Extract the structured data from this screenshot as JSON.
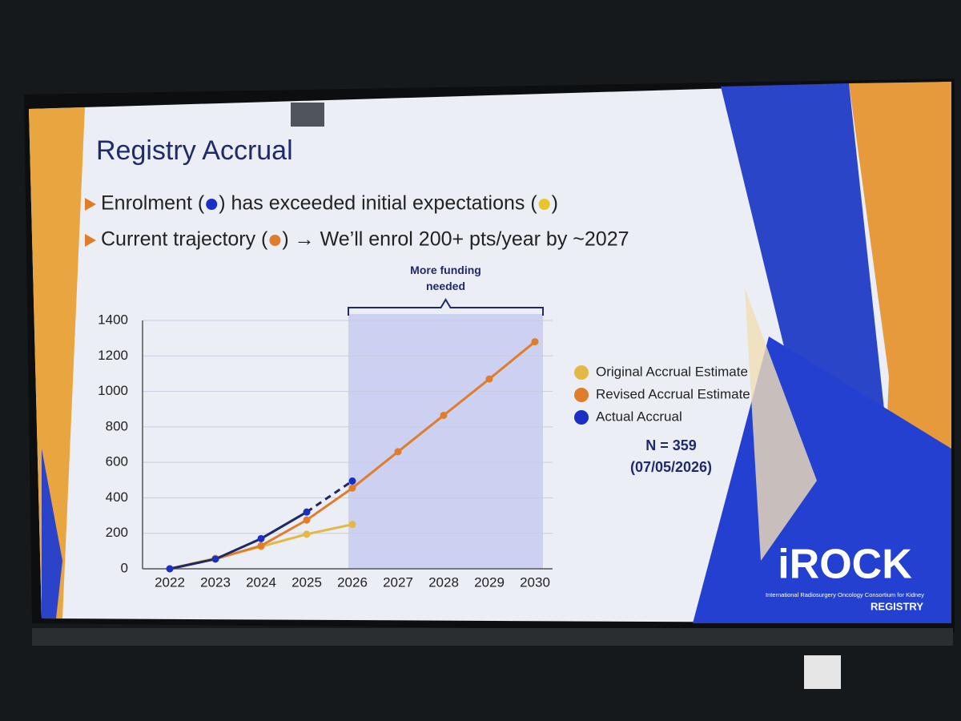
{
  "slide": {
    "title": "Registry Accrual",
    "bullets": [
      [
        "Enrolment (",
        ") has exceeded initial expectations (",
        ")"
      ],
      [
        "Current trajectory (",
        ") → We’ll enrol 200+ pts/year by ~2027"
      ]
    ],
    "bullet_dot_colors": [
      [
        "#1a2fc4",
        "#e8c62a"
      ],
      [
        "#e07d2a"
      ]
    ],
    "logo": {
      "name": "iROCK",
      "subtitle": "International Radiosurgery Oncology Consortium for Kidney",
      "tag": "REGISTRY"
    }
  },
  "chart_data": {
    "type": "line",
    "categories": [
      "2022",
      "2023",
      "2024",
      "2025",
      "2026",
      "2027",
      "2028",
      "2029",
      "2030"
    ],
    "series": [
      {
        "name": "Original Accrual Estimate",
        "color": "#e3b844",
        "values": [
          0,
          60,
          125,
          195,
          250,
          null,
          null,
          null,
          null
        ]
      },
      {
        "name": "Revised Accrual Estimate",
        "color": "#e07d2a",
        "values": [
          0,
          55,
          130,
          275,
          455,
          660,
          865,
          1070,
          1280
        ]
      },
      {
        "name": "Actual Accrual",
        "color": "#1a2fc4",
        "line_color": "#1c2a66",
        "dashed_last": true,
        "values": [
          0,
          55,
          170,
          320,
          495,
          null,
          null,
          null,
          null
        ]
      }
    ],
    "ylim": [
      0,
      1400
    ],
    "yticks": [
      0,
      200,
      400,
      600,
      800,
      1000,
      1200,
      1400
    ],
    "grid": true,
    "annotation": {
      "text": "More funding needed",
      "from": "2026",
      "to": "2030"
    },
    "note": [
      "N = 359",
      "(07/05/2026)"
    ],
    "legend": "right"
  }
}
